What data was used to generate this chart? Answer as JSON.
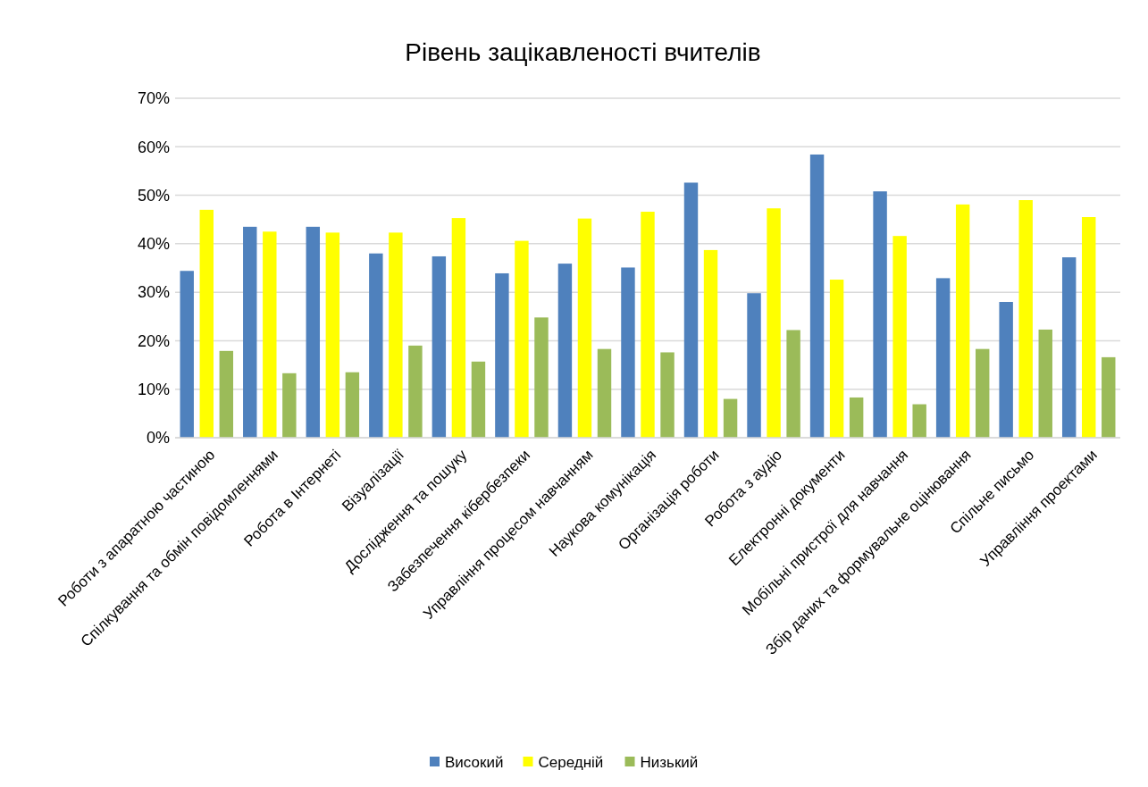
{
  "chart_data": {
    "type": "bar",
    "title": "Рівень зацікавленості вчителів",
    "categories": [
      "Роботи з апаратною частиною",
      "Спілкування та обмін повідомленнями",
      "Робота в Інтернеті",
      "Візуалізації",
      "Дослідження та пошуку",
      "Забезпечення кібербезпеки",
      "Управління процесом навчанням",
      "Наукова комунікація",
      "Організація роботи",
      "Робота з аудіо",
      "Електронні документи",
      "Мобільні пристрої для навчання",
      "Збір даних та формувальне оцінювання",
      "Спільне письмо",
      "Управління проектами"
    ],
    "series": [
      {
        "name": "Високий",
        "color": "#4f81bd",
        "values": [
          34.4,
          43.5,
          43.5,
          38.0,
          37.4,
          33.9,
          35.9,
          35.1,
          52.6,
          29.8,
          58.4,
          50.8,
          32.9,
          28.0,
          37.2
        ]
      },
      {
        "name": "Середній",
        "color": "#ffff00",
        "values": [
          47.0,
          42.5,
          42.3,
          42.3,
          45.3,
          40.6,
          45.2,
          46.6,
          38.7,
          47.3,
          32.6,
          41.6,
          48.1,
          49.0,
          45.5
        ]
      },
      {
        "name": "Низький",
        "color": "#9bbb59",
        "values": [
          17.9,
          13.3,
          13.5,
          19.0,
          15.7,
          24.8,
          18.3,
          17.6,
          8.0,
          22.2,
          8.3,
          6.9,
          18.3,
          22.3,
          16.6
        ]
      }
    ],
    "ylim": [
      0,
      70
    ],
    "yticks": [
      {
        "value": 0,
        "label": "0%"
      },
      {
        "value": 10,
        "label": "10%"
      },
      {
        "value": 20,
        "label": "20%"
      },
      {
        "value": 30,
        "label": "30%"
      },
      {
        "value": 40,
        "label": "40%"
      },
      {
        "value": 50,
        "label": "50%"
      },
      {
        "value": 60,
        "label": "60%"
      },
      {
        "value": 70,
        "label": "70%"
      }
    ],
    "grid": "y",
    "legend": "bottom"
  }
}
